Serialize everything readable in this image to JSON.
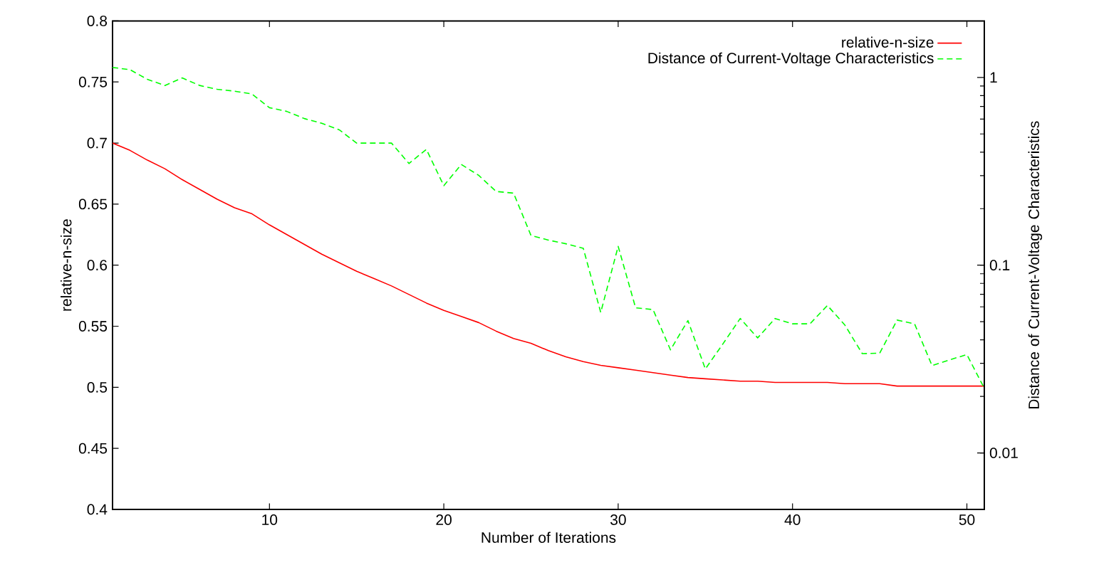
{
  "chart_data": {
    "type": "line",
    "xlabel": "Number of Iterations",
    "ylabel": "relative-n-size",
    "y2label": "Distance of Current-Voltage Characteristics",
    "x": [
      1,
      2,
      3,
      4,
      5,
      6,
      7,
      8,
      9,
      10,
      11,
      12,
      13,
      14,
      15,
      16,
      17,
      18,
      19,
      20,
      21,
      22,
      23,
      24,
      25,
      26,
      27,
      28,
      29,
      30,
      31,
      32,
      33,
      34,
      35,
      36,
      37,
      38,
      39,
      40,
      41,
      42,
      43,
      44,
      45,
      46,
      47,
      48,
      49,
      50,
      51
    ],
    "xlim": [
      1,
      51
    ],
    "xticks": [
      10,
      20,
      30,
      40,
      50
    ],
    "ylim": [
      0.4,
      0.8
    ],
    "yticks": [
      0.4,
      0.45,
      0.5,
      0.55,
      0.6,
      0.65,
      0.7,
      0.75,
      0.8
    ],
    "y2lim": [
      0.005,
      2
    ],
    "y2ticks": [
      0.01,
      0.1,
      1
    ],
    "log": "y2",
    "legend": "top right",
    "series": [
      {
        "name": "relative-n-size",
        "color": "#ff0000",
        "line_style": "solid",
        "axis": "y",
        "values": [
          0.7,
          0.694,
          0.686,
          0.679,
          0.67,
          0.662,
          0.654,
          0.647,
          0.642,
          0.633,
          0.625,
          0.617,
          0.609,
          0.602,
          0.595,
          0.589,
          0.583,
          0.576,
          0.569,
          0.563,
          0.558,
          0.553,
          0.546,
          0.54,
          0.536,
          0.53,
          0.525,
          0.521,
          0.518,
          0.516,
          0.514,
          0.512,
          0.51,
          0.508,
          0.507,
          0.506,
          0.505,
          0.505,
          0.504,
          0.504,
          0.504,
          0.504,
          0.503,
          0.503,
          0.503,
          0.501,
          0.501,
          0.501,
          0.501,
          0.501,
          0.501
        ]
      },
      {
        "name": "Distance of Current-Voltage Characteristics",
        "color": "#00ff00",
        "line_style": "dashed",
        "axis": "y2",
        "values": [
          1.13,
          1.1,
          0.977,
          0.906,
          0.994,
          0.906,
          0.865,
          0.845,
          0.816,
          0.69,
          0.659,
          0.604,
          0.57,
          0.526,
          0.447,
          0.447,
          0.447,
          0.348,
          0.414,
          0.265,
          0.344,
          0.301,
          0.247,
          0.242,
          0.144,
          0.136,
          0.13,
          0.123,
          0.056,
          0.126,
          0.0593,
          0.058,
          0.0354,
          0.0507,
          0.028,
          0.038,
          0.052,
          0.041,
          0.052,
          0.0487,
          0.0487,
          0.061,
          0.048,
          0.0338,
          0.034,
          0.051,
          0.0487,
          0.0292,
          0.0313,
          0.0334,
          0.0221
        ]
      }
    ]
  }
}
